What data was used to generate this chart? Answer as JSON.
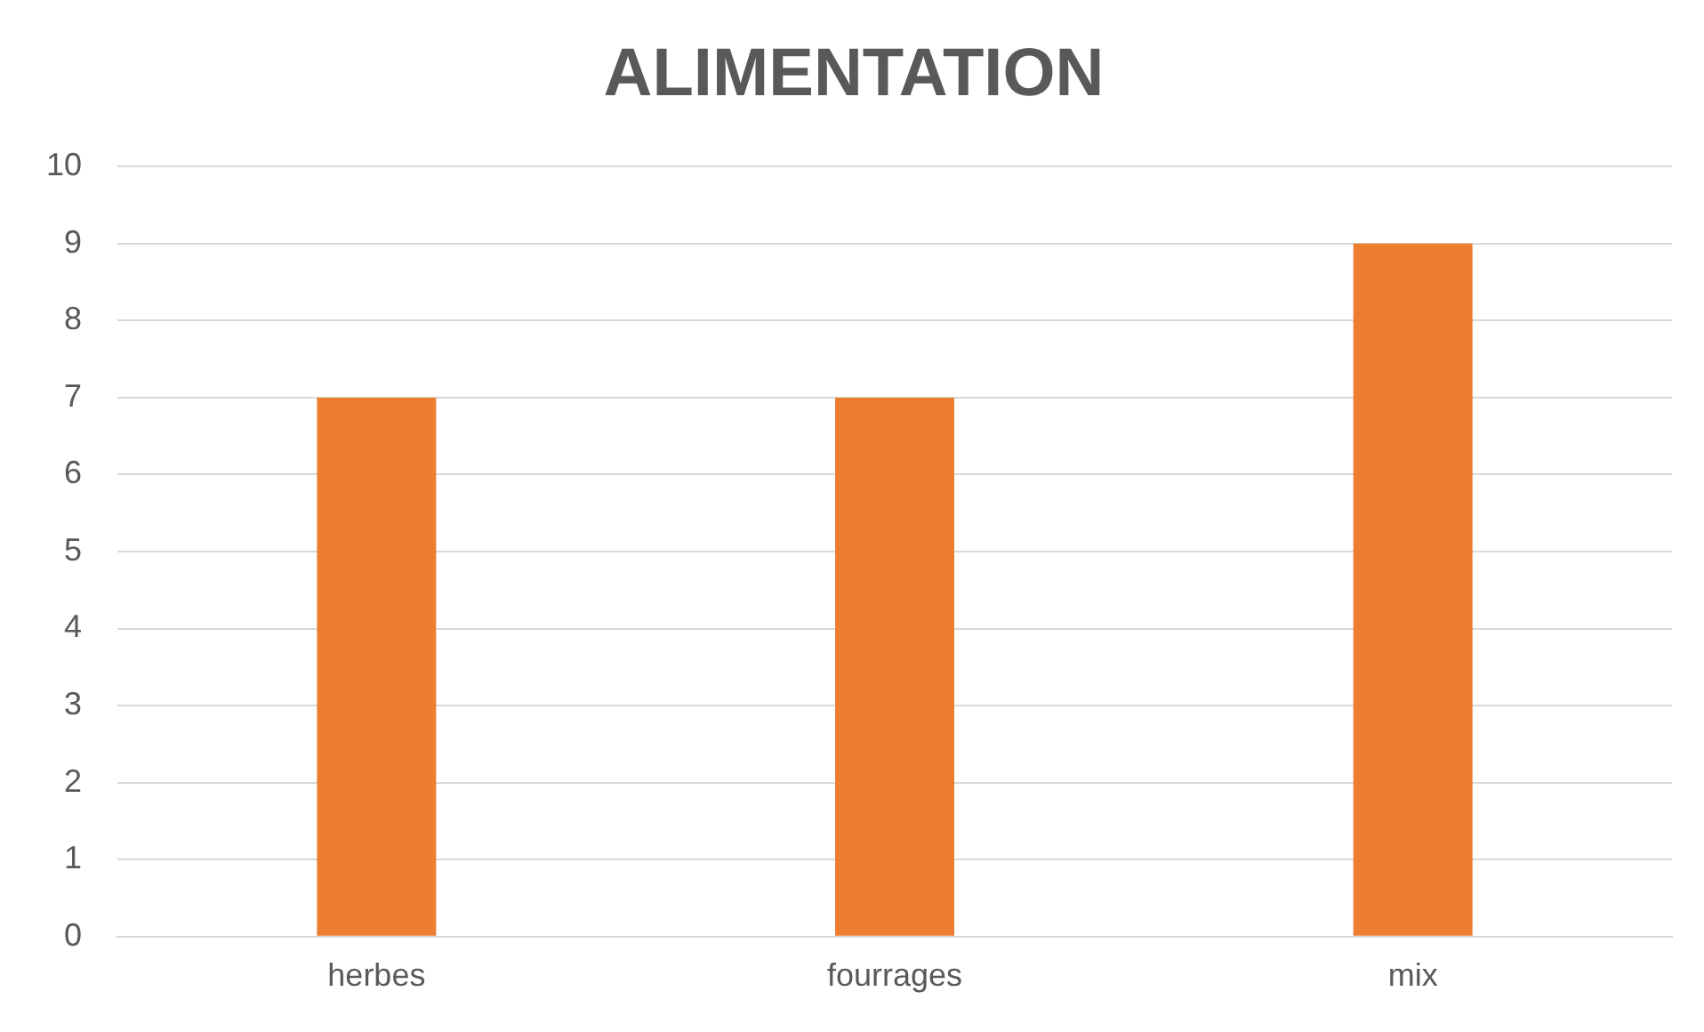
{
  "chart_data": {
    "type": "bar",
    "title": "ALIMENTATION",
    "categories": [
      "herbes",
      "fourrages",
      "mix"
    ],
    "values": [
      7,
      7,
      9
    ],
    "color": "#ed7d31",
    "ylim": [
      0,
      10
    ],
    "yticks": [
      0,
      1,
      2,
      3,
      4,
      5,
      6,
      7,
      8,
      9,
      10
    ],
    "grid": "y",
    "legend": false
  }
}
